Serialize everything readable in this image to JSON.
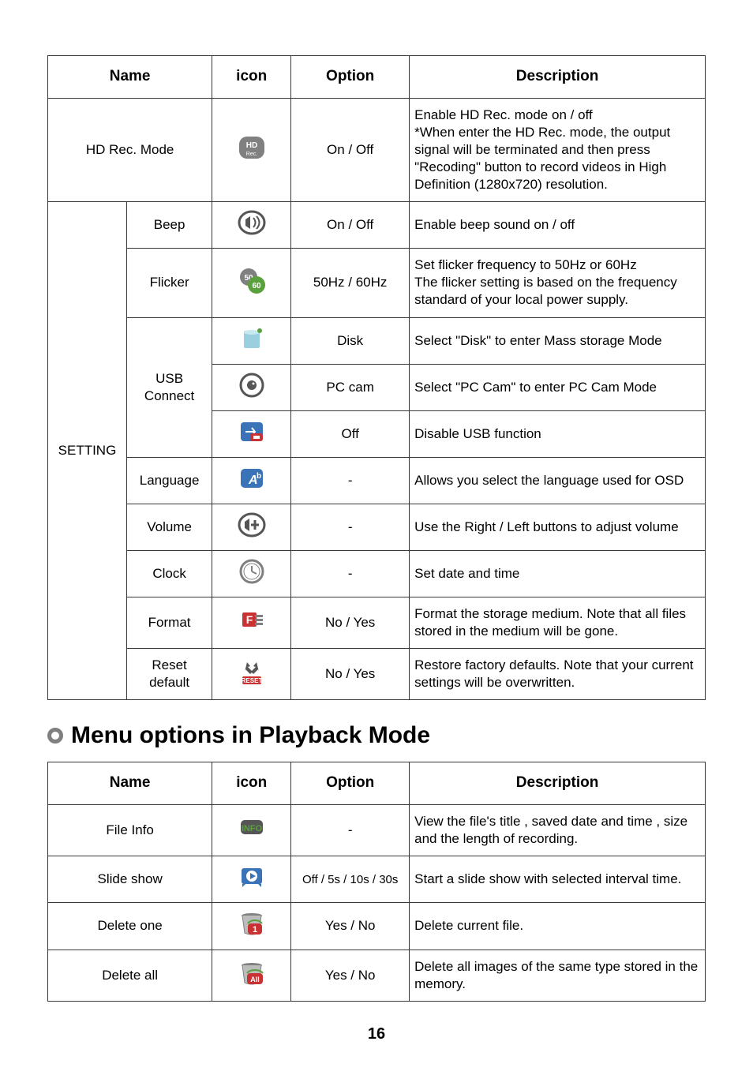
{
  "table1": {
    "headers": {
      "name": "Name",
      "icon": "icon",
      "option": "Option",
      "description": "Description"
    },
    "rows": [
      {
        "name": "HD Rec. Mode",
        "option": "On / Off",
        "description": "Enable HD Rec. mode on / off\n*When enter the HD Rec. mode, the output signal will be terminated and then press \"Recoding\" button to record videos in High Definition (1280x720) resolution."
      },
      {
        "name2": "Beep",
        "option": "On / Off",
        "description": "Enable beep sound on / off"
      },
      {
        "name2": "Flicker",
        "option": "50Hz / 60Hz",
        "description": "Set flicker frequency to 50Hz or 60Hz\nThe flicker setting is based on the frequency standard of your local power supply."
      },
      {
        "name2": "USB\nConnect",
        "option": "Disk",
        "description": "Select \"Disk\" to enter Mass storage Mode"
      },
      {
        "option": "PC cam",
        "description": "Select \"PC Cam\" to enter PC Cam Mode"
      },
      {
        "option": "Off",
        "description": "Disable USB function"
      },
      {
        "name1": "SETTING",
        "name2": "Language",
        "option": "-",
        "description": "Allows you select the language used for OSD"
      },
      {
        "name2": "Volume",
        "option": "-",
        "description": "Use the Right / Left buttons to adjust volume"
      },
      {
        "name2": "Clock",
        "option": "-",
        "description": "Set date and time"
      },
      {
        "name2": "Format",
        "option": "No / Yes",
        "description": "Format the storage medium. Note that all files stored in the medium will be gone."
      },
      {
        "name2": "Reset default",
        "option": "No / Yes",
        "description": "Restore factory defaults. Note that your current settings will be overwritten."
      }
    ]
  },
  "section_heading": "Menu options in Playback Mode",
  "table2": {
    "headers": {
      "name": "Name",
      "icon": "icon",
      "option": "Option",
      "description": "Description"
    },
    "rows": [
      {
        "name": "File Info",
        "option": "-",
        "description": "View the file's title , saved date and time , size and the length of recording."
      },
      {
        "name": "Slide show",
        "option": "Off / 5s / 10s / 30s",
        "description": "Start a slide show with selected interval time."
      },
      {
        "name": "Delete one",
        "option": "Yes / No",
        "description": "Delete current file."
      },
      {
        "name": "Delete all",
        "option": "Yes / No",
        "description": "Delete all images of the same type stored in the memory."
      }
    ]
  },
  "page_number": "16",
  "colors": {
    "text": "#000000",
    "border": "#383838",
    "bullet": "#808080",
    "icon_grey": "#808080",
    "icon_dark": "#555555",
    "icon_blue": "#3a73b8",
    "icon_green": "#5aa03c",
    "icon_red": "#c83232",
    "icon_badge": "#d08030"
  }
}
